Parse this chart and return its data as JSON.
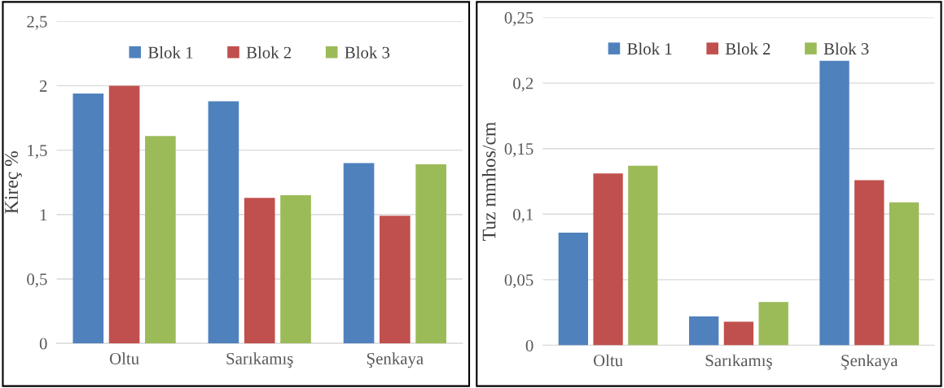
{
  "chart_data": [
    {
      "type": "bar",
      "ylabel": "Kireç %",
      "categories": [
        "Oltu",
        "Sarıkamış",
        "Şenkaya"
      ],
      "series": [
        {
          "name": "Blok 1",
          "color": "#4f81bd",
          "values": [
            1.94,
            1.88,
            1.4
          ]
        },
        {
          "name": "Blok 2",
          "color": "#c0504d",
          "values": [
            2.0,
            1.13,
            0.99
          ]
        },
        {
          "name": "Blok 3",
          "color": "#9bbb59",
          "values": [
            1.61,
            1.15,
            1.39
          ]
        }
      ],
      "ylim": [
        0,
        2.5
      ],
      "yticks": [
        0,
        {
          "value": 0.5,
          "label": "0,5"
        },
        1,
        {
          "value": 1.5,
          "label": "1,5"
        },
        2,
        {
          "value": 2.5,
          "label": "2,5"
        }
      ],
      "grid": "y",
      "legend": "top"
    },
    {
      "type": "bar",
      "ylabel": "Tuz mmhos/cm",
      "categories": [
        "Oltu",
        "Sarıkamış",
        "Şenkaya"
      ],
      "series": [
        {
          "name": "Blok 1",
          "color": "#4f81bd",
          "values": [
            0.086,
            0.022,
            0.217
          ]
        },
        {
          "name": "Blok 2",
          "color": "#c0504d",
          "values": [
            0.131,
            0.018,
            0.126
          ]
        },
        {
          "name": "Blok 3",
          "color": "#9bbb59",
          "values": [
            0.137,
            0.033,
            0.109
          ]
        }
      ],
      "ylim": [
        0,
        0.25
      ],
      "yticks": [
        0,
        {
          "value": 0.05,
          "label": "0,05"
        },
        {
          "value": 0.1,
          "label": "0,1"
        },
        {
          "value": 0.15,
          "label": "0,15"
        },
        {
          "value": 0.2,
          "label": "0,2"
        },
        {
          "value": 0.25,
          "label": "0,25"
        }
      ],
      "grid": "y",
      "legend": "top"
    }
  ]
}
